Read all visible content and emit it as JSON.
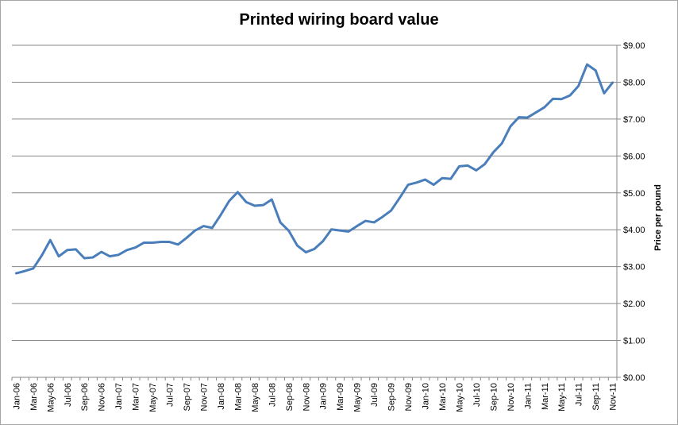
{
  "chart_data": {
    "type": "line",
    "title": "Printed wiring board value",
    "xlabel": "",
    "ylabel": "Price per pound",
    "ylim": [
      0,
      9
    ],
    "y_ticks": [
      "$0.00",
      "$1.00",
      "$2.00",
      "$3.00",
      "$4.00",
      "$5.00",
      "$6.00",
      "$7.00",
      "$8.00",
      "$9.00"
    ],
    "y_axis_position": "right",
    "grid": "horizontal",
    "legend": "none",
    "x_tick_labels": [
      "Jan-06",
      "Mar-06",
      "May-06",
      "Jul-06",
      "Sep-06",
      "Nov-06",
      "Jan-07",
      "Mar-07",
      "May-07",
      "Jul-07",
      "Sep-07",
      "Nov-07",
      "Jan-08",
      "Mar-08",
      "May-08",
      "Jul-08",
      "Sep-08",
      "Nov-08",
      "Jan-09",
      "Mar-09",
      "May-09",
      "Jul-09",
      "Sep-09",
      "Nov-09",
      "Jan-10",
      "Mar-10",
      "May-10",
      "Jul-10",
      "Sep-10",
      "Nov-10",
      "Jan-11",
      "Mar-11",
      "May-11",
      "Jul-11",
      "Sep-11",
      "Nov-11"
    ],
    "x": [
      "Jan-06",
      "Feb-06",
      "Mar-06",
      "Apr-06",
      "May-06",
      "Jun-06",
      "Jul-06",
      "Aug-06",
      "Sep-06",
      "Oct-06",
      "Nov-06",
      "Dec-06",
      "Jan-07",
      "Feb-07",
      "Mar-07",
      "Apr-07",
      "May-07",
      "Jun-07",
      "Jul-07",
      "Aug-07",
      "Sep-07",
      "Oct-07",
      "Nov-07",
      "Dec-07",
      "Jan-08",
      "Feb-08",
      "Mar-08",
      "Apr-08",
      "May-08",
      "Jun-08",
      "Jul-08",
      "Aug-08",
      "Sep-08",
      "Oct-08",
      "Nov-08",
      "Dec-08",
      "Jan-09",
      "Feb-09",
      "Mar-09",
      "Apr-09",
      "May-09",
      "Jun-09",
      "Jul-09",
      "Aug-09",
      "Sep-09",
      "Oct-09",
      "Nov-09",
      "Dec-09",
      "Jan-10",
      "Feb-10",
      "Mar-10",
      "Apr-10",
      "May-10",
      "Jun-10",
      "Jul-10",
      "Aug-10",
      "Sep-10",
      "Oct-10",
      "Nov-10",
      "Dec-10",
      "Jan-11",
      "Feb-11",
      "Mar-11",
      "Apr-11",
      "May-11",
      "Jun-11",
      "Jul-11",
      "Aug-11",
      "Sep-11",
      "Oct-11",
      "Nov-11"
    ],
    "series": [
      {
        "color": "#4a7ebb",
        "values": [
          2.82,
          2.88,
          2.95,
          3.3,
          3.72,
          3.28,
          3.45,
          3.47,
          3.23,
          3.25,
          3.4,
          3.28,
          3.32,
          3.45,
          3.52,
          3.65,
          3.65,
          3.67,
          3.67,
          3.6,
          3.78,
          3.98,
          4.1,
          4.05,
          4.4,
          4.78,
          5.02,
          4.75,
          4.65,
          4.67,
          4.82,
          4.2,
          3.97,
          3.57,
          3.39,
          3.48,
          3.69,
          4.01,
          3.98,
          3.95,
          4.1,
          4.24,
          4.2,
          4.35,
          4.52,
          4.86,
          5.22,
          5.28,
          5.36,
          5.22,
          5.4,
          5.38,
          5.72,
          5.74,
          5.61,
          5.78,
          6.1,
          6.34,
          6.8,
          7.05,
          7.04,
          7.18,
          7.32,
          7.55,
          7.54,
          7.64,
          7.9,
          8.48,
          8.32,
          7.7,
          7.99
        ]
      }
    ]
  }
}
